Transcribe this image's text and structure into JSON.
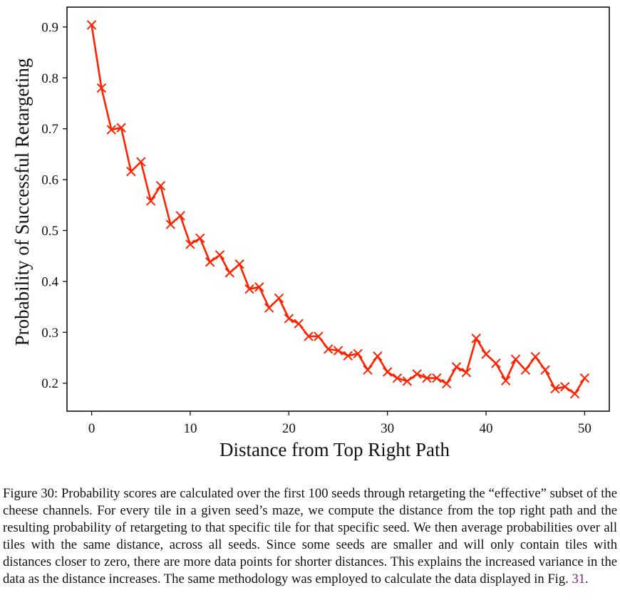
{
  "chart_data": {
    "type": "line",
    "title": "",
    "xlabel": "Distance from Top Right Path",
    "ylabel": "Probability of Successful Retargeting",
    "xlim": [
      -2.5,
      52.5
    ],
    "ylim": [
      0.145,
      0.939
    ],
    "xticks": [
      0,
      10,
      20,
      30,
      40,
      50
    ],
    "xtick_labels": [
      "0",
      "10",
      "20",
      "30",
      "40",
      "50"
    ],
    "yticks": [
      0.2,
      0.3,
      0.4,
      0.5,
      0.6,
      0.7,
      0.8,
      0.9
    ],
    "ytick_labels": [
      "0.2",
      "0.3",
      "0.4",
      "0.5",
      "0.6",
      "0.7",
      "0.8",
      "0.9"
    ],
    "grid": false,
    "legend": null,
    "series": [
      {
        "name": "Probability of Successful Retargeting",
        "color": "#ff2200",
        "marker": "x",
        "x": [
          0,
          1,
          2,
          3,
          4,
          5,
          6,
          7,
          8,
          9,
          10,
          11,
          12,
          13,
          14,
          15,
          16,
          17,
          18,
          19,
          20,
          21,
          22,
          23,
          24,
          25,
          26,
          27,
          28,
          29,
          30,
          31,
          32,
          33,
          34,
          35,
          36,
          37,
          38,
          39,
          40,
          41,
          42,
          43,
          44,
          45,
          46,
          47,
          48,
          49,
          50
        ],
        "values": [
          0.904,
          0.78,
          0.698,
          0.702,
          0.616,
          0.635,
          0.558,
          0.588,
          0.512,
          0.529,
          0.473,
          0.485,
          0.438,
          0.452,
          0.417,
          0.434,
          0.385,
          0.389,
          0.348,
          0.367,
          0.327,
          0.317,
          0.292,
          0.292,
          0.267,
          0.264,
          0.254,
          0.258,
          0.226,
          0.253,
          0.222,
          0.21,
          0.204,
          0.218,
          0.21,
          0.21,
          0.199,
          0.232,
          0.221,
          0.288,
          0.257,
          0.239,
          0.205,
          0.247,
          0.226,
          0.252,
          0.226,
          0.189,
          0.193,
          0.179,
          0.21
        ]
      }
    ]
  },
  "caption": {
    "label": "Figure 30:",
    "text_before_ref": " Probability scores are calculated over the first 100 seeds through retargeting the “effective” subset of the cheese channels. For every tile in a given seed’s maze, we compute the distance from the top right path and the resulting probability of retargeting to that specific tile for that specific seed. We then average probabilities over all tiles with the same distance, across all seeds. Since some seeds are smaller and will only contain tiles with distances closer to zero, there are more data points for shorter distances. This explains the increased variance in the data as the distance increases. The same methodology was employed to calculate the data displayed in Fig. ",
    "figure_ref": "31",
    "text_after_ref": "."
  }
}
